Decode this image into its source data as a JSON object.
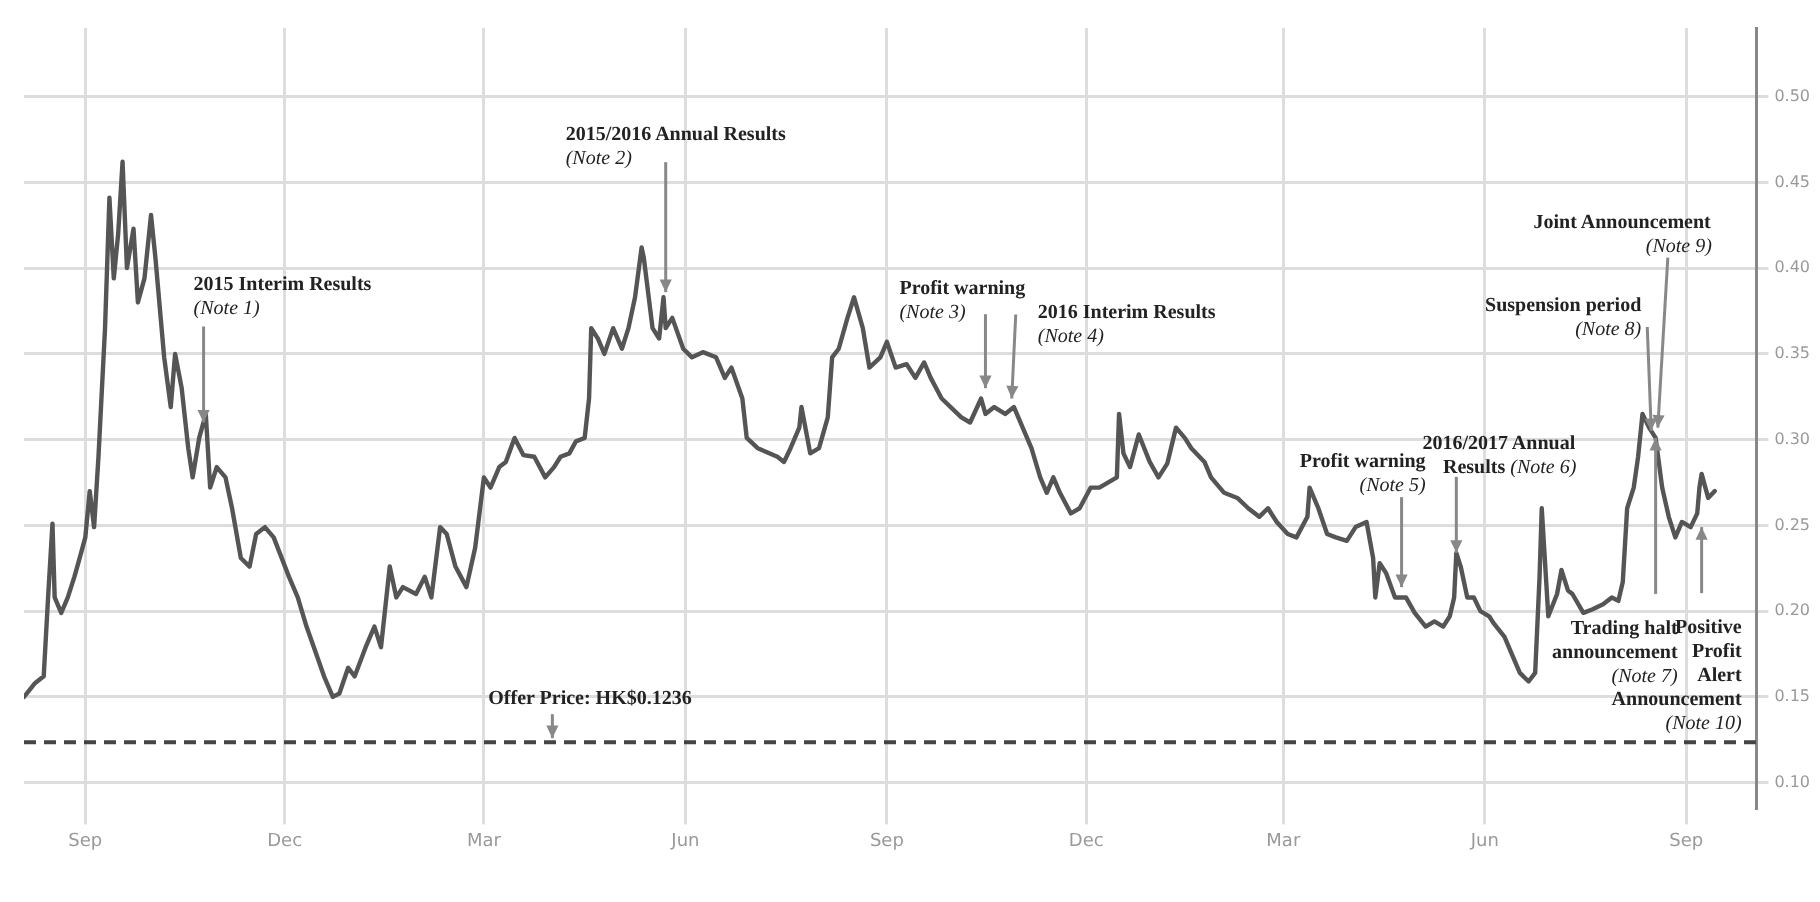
{
  "chart_data": {
    "type": "line",
    "xlim": [
      "2015-08-04",
      "2017-10-03"
    ],
    "ylim": [
      0.085,
      0.54
    ],
    "xticks": [
      {
        "value": "2015-09-01",
        "label": "Sep"
      },
      {
        "value": "2015-12-01",
        "label": "Dec"
      },
      {
        "value": "2016-03-01",
        "label": "Mar"
      },
      {
        "value": "2016-06-01",
        "label": "Jun"
      },
      {
        "value": "2016-09-01",
        "label": "Sep"
      },
      {
        "value": "2016-12-01",
        "label": "Dec"
      },
      {
        "value": "2017-03-01",
        "label": "Mar"
      },
      {
        "value": "2017-06-01",
        "label": "Jun"
      },
      {
        "value": "2017-09-01",
        "label": "Sep"
      }
    ],
    "yticks": [
      {
        "value": 0.1,
        "label": "0.10"
      },
      {
        "value": 0.15,
        "label": "0.15"
      },
      {
        "value": 0.2,
        "label": "0.20"
      },
      {
        "value": 0.25,
        "label": "0.25"
      },
      {
        "value": 0.3,
        "label": "0.30"
      },
      {
        "value": 0.35,
        "label": "0.35"
      },
      {
        "value": 0.4,
        "label": "0.40"
      },
      {
        "value": 0.45,
        "label": "0.45"
      },
      {
        "value": 0.5,
        "label": "0.50"
      }
    ],
    "grid": true,
    "legend": false,
    "marker": "none",
    "line_style": "solid",
    "series": [
      {
        "color": "#555555",
        "x": [
          "2015-08-04",
          "2015-08-09",
          "2015-08-13",
          "2015-08-15",
          "2015-08-17",
          "2015-08-18",
          "2015-08-21",
          "2015-08-24",
          "2015-08-27",
          "2015-08-29",
          "2015-09-01",
          "2015-09-03",
          "2015-09-05",
          "2015-09-07",
          "2015-09-10",
          "2015-09-12",
          "2015-09-14",
          "2015-09-16",
          "2015-09-18",
          "2015-09-20",
          "2015-09-23",
          "2015-09-25",
          "2015-09-28",
          "2015-10-01",
          "2015-10-03",
          "2015-10-07",
          "2015-10-10",
          "2015-10-12",
          "2015-10-15",
          "2015-10-18",
          "2015-10-20",
          "2015-10-23",
          "2015-10-26",
          "2015-10-28",
          "2015-10-31",
          "2015-11-04",
          "2015-11-07",
          "2015-11-11",
          "2015-11-15",
          "2015-11-18",
          "2015-11-22",
          "2015-11-26",
          "2015-12-03",
          "2015-12-07",
          "2015-12-11",
          "2015-12-16",
          "2015-12-19",
          "2015-12-23",
          "2015-12-26",
          "2015-12-30",
          "2016-01-02",
          "2016-01-07",
          "2016-01-11",
          "2016-01-14",
          "2016-01-18",
          "2016-01-21",
          "2016-01-24",
          "2016-01-30",
          "2016-02-03",
          "2016-02-06",
          "2016-02-10",
          "2016-02-13",
          "2016-02-17",
          "2016-02-22",
          "2016-02-26",
          "2016-03-01",
          "2016-03-04",
          "2016-03-08",
          "2016-03-11",
          "2016-03-15",
          "2016-03-19",
          "2016-03-24",
          "2016-03-29",
          "2016-04-02",
          "2016-04-05",
          "2016-04-09",
          "2016-04-12",
          "2016-04-16",
          "2016-04-18",
          "2016-04-19",
          "2016-04-22",
          "2016-04-25",
          "2016-04-29",
          "2016-05-03",
          "2016-05-06",
          "2016-05-09",
          "2016-05-12",
          "2016-05-13",
          "2016-05-17",
          "2016-05-20",
          "2016-05-22",
          "2016-05-23",
          "2016-05-26",
          "2016-05-31",
          "2016-06-04",
          "2016-06-09",
          "2016-06-15",
          "2016-06-19",
          "2016-06-22",
          "2016-06-27",
          "2016-06-29",
          "2016-07-04",
          "2016-07-13",
          "2016-07-16",
          "2016-07-19",
          "2016-07-23",
          "2016-07-24",
          "2016-07-28",
          "2016-08-01",
          "2016-08-05",
          "2016-08-07",
          "2016-08-10",
          "2016-08-14",
          "2016-08-17",
          "2016-08-21",
          "2016-08-24",
          "2016-08-29",
          "2016-09-01",
          "2016-09-05",
          "2016-09-10",
          "2016-09-14",
          "2016-09-18",
          "2016-09-21",
          "2016-09-26",
          "2016-10-05",
          "2016-10-09",
          "2016-10-14",
          "2016-10-16",
          "2016-10-20",
          "2016-10-25",
          "2016-10-29",
          "2016-11-02",
          "2016-11-06",
          "2016-11-10",
          "2016-11-13",
          "2016-11-16",
          "2016-11-19",
          "2016-11-24",
          "2016-11-28",
          "2016-12-03",
          "2016-12-07",
          "2016-12-15",
          "2016-12-16",
          "2016-12-18",
          "2016-12-21",
          "2016-12-25",
          "2016-12-30",
          "2017-01-03",
          "2017-01-07",
          "2017-01-11",
          "2017-01-15",
          "2017-01-18",
          "2017-01-24",
          "2017-01-27",
          "2017-02-02",
          "2017-02-08",
          "2017-02-13",
          "2017-02-18",
          "2017-02-22",
          "2017-02-26",
          "2017-03-03",
          "2017-03-07",
          "2017-03-12",
          "2017-03-13",
          "2017-03-17",
          "2017-03-21",
          "2017-03-25",
          "2017-03-30",
          "2017-04-03",
          "2017-04-08",
          "2017-04-11",
          "2017-04-12",
          "2017-04-14",
          "2017-04-17",
          "2017-04-21",
          "2017-04-26",
          "2017-04-30",
          "2017-05-05",
          "2017-05-09",
          "2017-05-13",
          "2017-05-16",
          "2017-05-18",
          "2017-05-19",
          "2017-05-21",
          "2017-05-24",
          "2017-05-27",
          "2017-05-30",
          "2017-06-03",
          "2017-06-05",
          "2017-06-10",
          "2017-06-13",
          "2017-06-17",
          "2017-06-21",
          "2017-06-24",
          "2017-06-26",
          "2017-06-27",
          "2017-06-30",
          "2017-07-04",
          "2017-07-06",
          "2017-07-09",
          "2017-07-11",
          "2017-07-16",
          "2017-07-20",
          "2017-07-25",
          "2017-07-29",
          "2017-08-01",
          "2017-08-03",
          "2017-08-05",
          "2017-08-08",
          "2017-08-10",
          "2017-08-12",
          "2017-08-15",
          "2017-08-18",
          "2017-08-21",
          "2017-08-24",
          "2017-08-27",
          "2017-08-30",
          "2017-09-03",
          "2017-09-06",
          "2017-09-07",
          "2017-09-08",
          "2017-09-11",
          "2017-09-14"
        ],
        "values": [
          0.15,
          0.158,
          0.162,
          0.208,
          0.251,
          0.208,
          0.199,
          0.208,
          0.22,
          0.229,
          0.243,
          0.27,
          0.249,
          0.29,
          0.365,
          0.441,
          0.394,
          0.42,
          0.462,
          0.4,
          0.423,
          0.38,
          0.394,
          0.431,
          0.406,
          0.348,
          0.319,
          0.35,
          0.33,
          0.295,
          0.278,
          0.301,
          0.315,
          0.272,
          0.284,
          0.278,
          0.26,
          0.231,
          0.226,
          0.245,
          0.249,
          0.243,
          0.22,
          0.208,
          0.191,
          0.173,
          0.162,
          0.15,
          0.152,
          0.167,
          0.162,
          0.179,
          0.191,
          0.179,
          0.226,
          0.208,
          0.214,
          0.21,
          0.22,
          0.208,
          0.249,
          0.245,
          0.226,
          0.214,
          0.237,
          0.278,
          0.272,
          0.284,
          0.287,
          0.301,
          0.291,
          0.29,
          0.278,
          0.284,
          0.29,
          0.292,
          0.299,
          0.301,
          0.324,
          0.365,
          0.359,
          0.35,
          0.365,
          0.353,
          0.365,
          0.383,
          0.412,
          0.406,
          0.365,
          0.359,
          0.383,
          0.365,
          0.371,
          0.353,
          0.348,
          0.351,
          0.348,
          0.336,
          0.342,
          0.324,
          0.301,
          0.295,
          0.29,
          0.287,
          0.295,
          0.307,
          0.319,
          0.292,
          0.295,
          0.313,
          0.348,
          0.353,
          0.371,
          0.383,
          0.365,
          0.342,
          0.348,
          0.357,
          0.342,
          0.344,
          0.336,
          0.345,
          0.336,
          0.324,
          0.313,
          0.31,
          0.324,
          0.315,
          0.319,
          0.315,
          0.319,
          0.307,
          0.295,
          0.278,
          0.269,
          0.278,
          0.269,
          0.257,
          0.26,
          0.272,
          0.272,
          0.278,
          0.315,
          0.292,
          0.284,
          0.303,
          0.287,
          0.278,
          0.286,
          0.307,
          0.301,
          0.295,
          0.287,
          0.278,
          0.269,
          0.266,
          0.26,
          0.255,
          0.26,
          0.252,
          0.245,
          0.243,
          0.255,
          0.272,
          0.26,
          0.245,
          0.243,
          0.241,
          0.249,
          0.252,
          0.231,
          0.208,
          0.228,
          0.222,
          0.208,
          0.208,
          0.199,
          0.191,
          0.194,
          0.191,
          0.197,
          0.208,
          0.234,
          0.226,
          0.208,
          0.208,
          0.2,
          0.197,
          0.193,
          0.185,
          0.176,
          0.164,
          0.159,
          0.164,
          0.22,
          0.26,
          0.197,
          0.21,
          0.224,
          0.212,
          0.21,
          0.199,
          0.201,
          0.204,
          0.208,
          0.206,
          0.217,
          0.26,
          0.272,
          0.29,
          0.315,
          0.307,
          0.301,
          0.272,
          0.255,
          0.243,
          0.252,
          0.249,
          0.257,
          0.272,
          0.28,
          0.266,
          0.27
        ]
      }
    ],
    "ref_lines": [
      {
        "axis": "y",
        "value": 0.1236,
        "label": "Offer Price: HK$0.1236",
        "color": "#444444",
        "line_style": "dashed"
      }
    ],
    "annotations": [
      {
        "text": "2015 Interim Results\n(Note 1)",
        "x": "2015-10-25",
        "y": 0.31
      },
      {
        "text": "2015/2016 Annual Results\n(Note 2)",
        "x": "2016-05-23",
        "y": 0.386
      },
      {
        "text": "Profit warning\n(Note 3)",
        "x": "2016-10-16",
        "y": 0.33
      },
      {
        "text": "2016 Interim Results\n(Note 4)",
        "x": "2016-10-28",
        "y": 0.324
      },
      {
        "text": "Profit warning\n(Note 5)",
        "x": "2017-04-24",
        "y": 0.214
      },
      {
        "text": "2016/2017 Annual\nResults (Note 6)",
        "x": "2017-05-19",
        "y": 0.234
      },
      {
        "text": "Trading halt\nannouncement\n(Note 7)",
        "x": "2017-08-18",
        "y": 0.301
      },
      {
        "text": "Suspension period\n(Note 8)",
        "x": "2017-08-16",
        "y": 0.305
      },
      {
        "text": "Joint Announcement\n(Note 9)",
        "x": "2017-08-19",
        "y": 0.307
      },
      {
        "text": "Positive\nProfit\nAlert\nAnnouncement\n(Note 10)",
        "x": "2017-09-08",
        "y": 0.249
      }
    ]
  }
}
